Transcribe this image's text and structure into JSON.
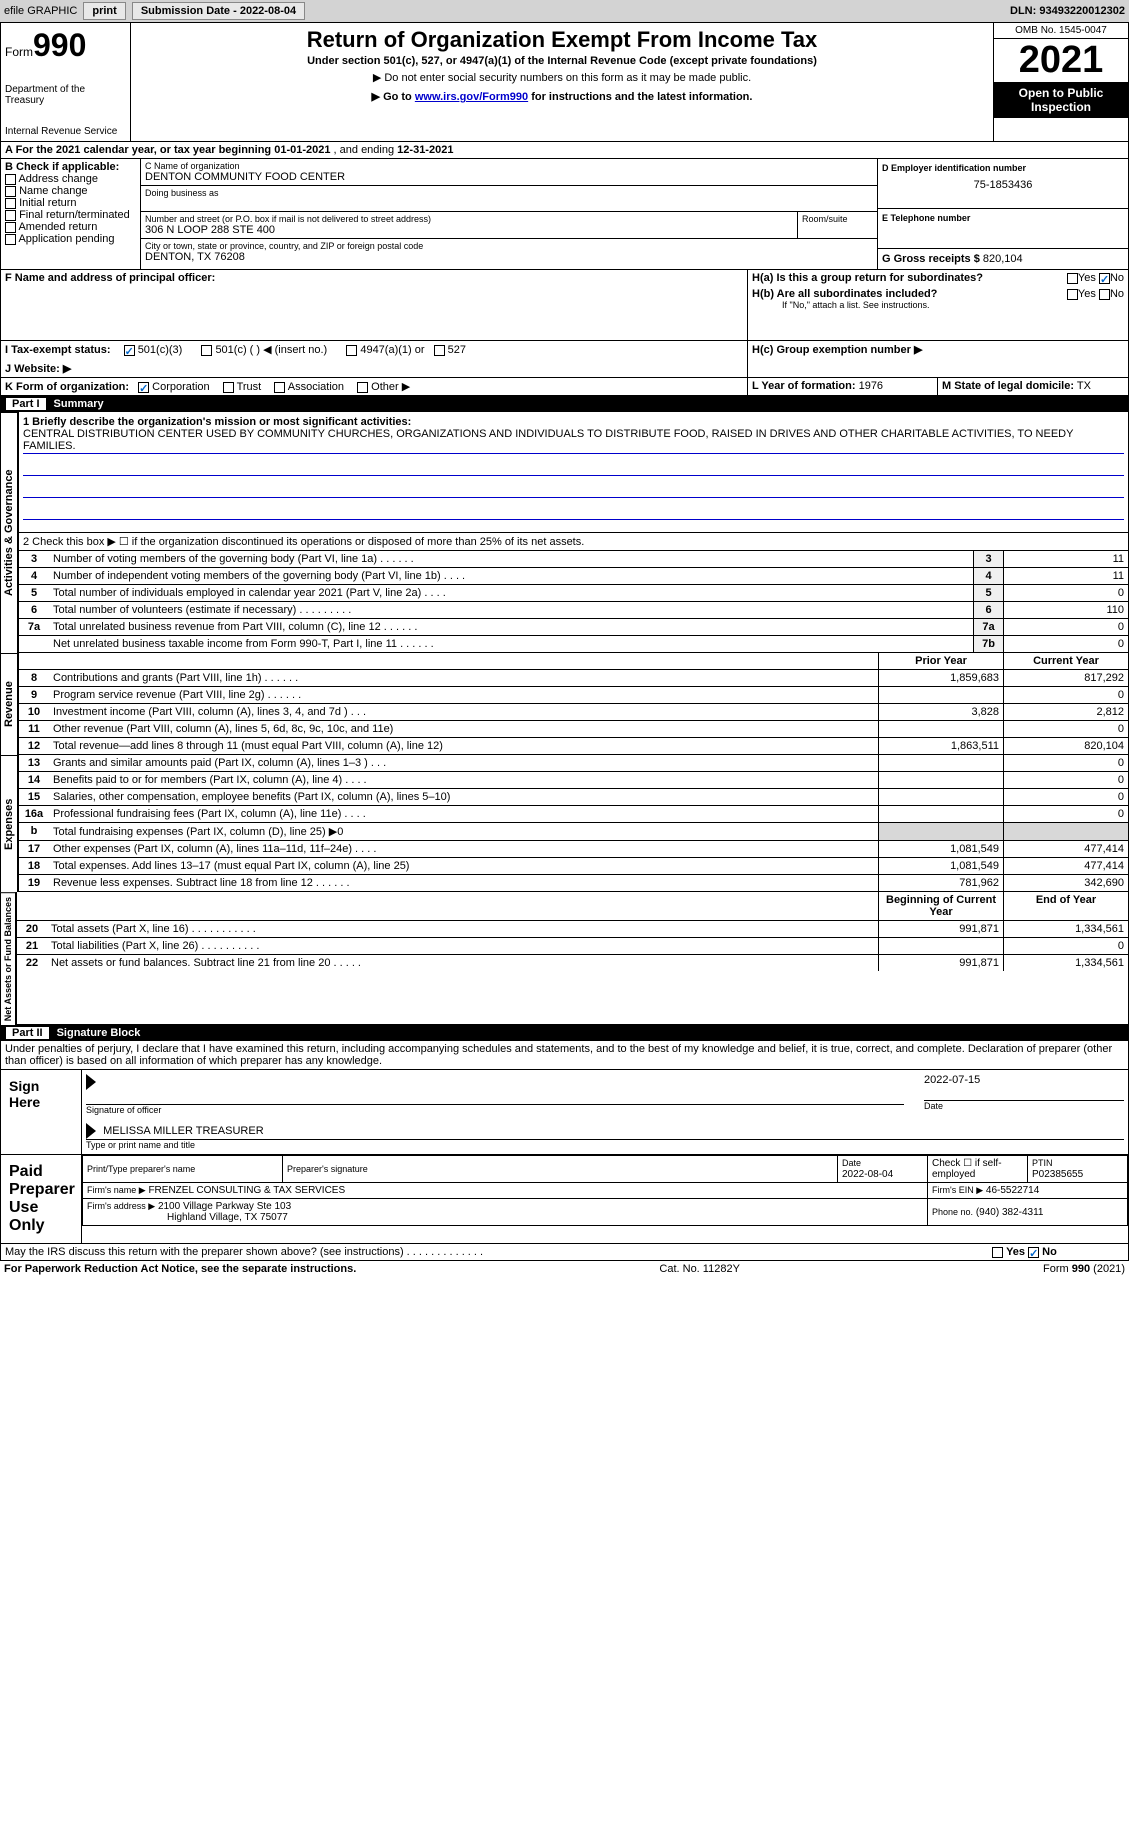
{
  "topbar": {
    "efile": "efile GRAPHIC",
    "print": "print",
    "submission_label": "Submission Date - 2022-08-04",
    "dln_label": "DLN: 93493220012302"
  },
  "header": {
    "form_prefix": "Form",
    "form_num": "990",
    "dept": "Department of the Treasury",
    "irs": "Internal Revenue Service",
    "title": "Return of Organization Exempt From Income Tax",
    "subtitle": "Under section 501(c), 527, or 4947(a)(1) of the Internal Revenue Code (except private foundations)",
    "note1": "▶ Do not enter social security numbers on this form as it may be made public.",
    "note2_pre": "▶ Go to ",
    "note2_link": "www.irs.gov/Form990",
    "note2_post": " for instructions and the latest information.",
    "omb": "OMB No. 1545-0047",
    "year": "2021",
    "inspect": "Open to Public Inspection"
  },
  "lineA": {
    "text_pre": "A For the 2021 calendar year, or tax year beginning ",
    "begin": "01-01-2021",
    "mid": " , and ending ",
    "end": "12-31-2021"
  },
  "sectionB": {
    "label": "B Check if applicable:",
    "items": [
      "Address change",
      "Name change",
      "Initial return",
      "Final return/terminated",
      "Amended return",
      "Application pending"
    ]
  },
  "sectionC": {
    "name_label": "C Name of organization",
    "name": "DENTON COMMUNITY FOOD CENTER",
    "dba_label": "Doing business as",
    "addr_label": "Number and street (or P.O. box if mail is not delivered to street address)",
    "room_label": "Room/suite",
    "addr": "306 N LOOP 288 STE 400",
    "city_label": "City or town, state or province, country, and ZIP or foreign postal code",
    "city": "DENTON, TX  76208"
  },
  "sectionD": {
    "label": "D Employer identification number",
    "value": "75-1853436"
  },
  "sectionE": {
    "label": "E Telephone number"
  },
  "sectionG": {
    "label": "G Gross receipts $",
    "value": "820,104"
  },
  "sectionF": {
    "label": "F Name and address of principal officer:"
  },
  "sectionH": {
    "a_label": "H(a) Is this a group return for subordinates?",
    "b_label": "H(b) Are all subordinates included?",
    "b_note": "If \"No,\" attach a list. See instructions.",
    "c_label": "H(c) Group exemption number ▶",
    "yes": "Yes",
    "no": "No"
  },
  "sectionI": {
    "label": "I   Tax-exempt status:",
    "opt1": "501(c)(3)",
    "opt2": "501(c) (  ) ◀ (insert no.)",
    "opt3": "4947(a)(1) or",
    "opt4": "527"
  },
  "sectionJ": {
    "label": "J   Website: ▶"
  },
  "sectionK": {
    "label": "K Form of organization:",
    "opts": [
      "Corporation",
      "Trust",
      "Association",
      "Other ▶"
    ]
  },
  "sectionL": {
    "label": "L Year of formation:",
    "value": "1976"
  },
  "sectionM": {
    "label": "M State of legal domicile:",
    "value": "TX"
  },
  "part1": {
    "bar": "Part I",
    "title": "Summary",
    "vlabel1": "Activities & Governance",
    "vlabel2": "Revenue",
    "vlabel3": "Expenses",
    "vlabel4": "Net Assets or Fund Balances",
    "l1_label": "1  Briefly describe the organization's mission or most significant activities:",
    "l1_text": "CENTRAL DISTRIBUTION CENTER USED BY COMMUNITY CHURCHES, ORGANIZATIONS AND INDIVIDUALS TO DISTRIBUTE FOOD, RAISED IN DRIVES AND OTHER CHARITABLE ACTIVITIES, TO NEEDY FAMILIES.",
    "l2": "2   Check this box ▶ ☐  if the organization discontinued its operations or disposed of more than 25% of its net assets.",
    "rows": [
      {
        "n": "3",
        "d": "Number of voting members of the governing body (Part VI, line 1a)  .    .    .    .    .    .",
        "b": "3",
        "v": "11"
      },
      {
        "n": "4",
        "d": "Number of independent voting members of the governing body (Part VI, line 1b)  .    .    .    .",
        "b": "4",
        "v": "11"
      },
      {
        "n": "5",
        "d": "Total number of individuals employed in calendar year 2021 (Part V, line 2a)  .    .    .    .",
        "b": "5",
        "v": "0"
      },
      {
        "n": "6",
        "d": "Total number of volunteers (estimate if necessary)    .    .    .    .    .    .    .    .    .",
        "b": "6",
        "v": "110"
      },
      {
        "n": "7a",
        "d": "Total unrelated business revenue from Part VIII, column (C), line 12   .    .    .    .    .    .",
        "b": "7a",
        "v": "0"
      },
      {
        "n": "",
        "d": "Net unrelated business taxable income from Form 990-T, Part I, line 11   .    .    .    .    .    .",
        "b": "7b",
        "v": "0"
      }
    ],
    "colhdr_prior": "Prior Year",
    "colhdr_current": "Current Year",
    "rev_rows": [
      {
        "n": "8",
        "d": "Contributions and grants (Part VIII, line 1h)   .    .    .    .    .    .",
        "p": "1,859,683",
        "c": "817,292"
      },
      {
        "n": "9",
        "d": "Program service revenue (Part VIII, line 2g)   .    .    .    .    .    .",
        "p": "",
        "c": "0"
      },
      {
        "n": "10",
        "d": "Investment income (Part VIII, column (A), lines 3, 4, and 7d )   .    .    .",
        "p": "3,828",
        "c": "2,812"
      },
      {
        "n": "11",
        "d": "Other revenue (Part VIII, column (A), lines 5, 6d, 8c, 9c, 10c, and 11e)",
        "p": "",
        "c": "0"
      },
      {
        "n": "12",
        "d": "Total revenue—add lines 8 through 11 (must equal Part VIII, column (A), line 12)",
        "p": "1,863,511",
        "c": "820,104"
      }
    ],
    "exp_rows": [
      {
        "n": "13",
        "d": "Grants and similar amounts paid (Part IX, column (A), lines 1–3 )   .    .    .",
        "p": "",
        "c": "0"
      },
      {
        "n": "14",
        "d": "Benefits paid to or for members (Part IX, column (A), line 4)   .    .    .    .",
        "p": "",
        "c": "0"
      },
      {
        "n": "15",
        "d": "Salaries, other compensation, employee benefits (Part IX, column (A), lines 5–10)",
        "p": "",
        "c": "0"
      },
      {
        "n": "16a",
        "d": "Professional fundraising fees (Part IX, column (A), line 11e)   .    .    .    .",
        "p": "",
        "c": "0"
      },
      {
        "n": "b",
        "d": "Total fundraising expenses (Part IX, column (D), line 25) ▶0",
        "p": "shade",
        "c": "shade"
      },
      {
        "n": "17",
        "d": "Other expenses (Part IX, column (A), lines 11a–11d, 11f–24e)   .    .    .    .",
        "p": "1,081,549",
        "c": "477,414"
      },
      {
        "n": "18",
        "d": "Total expenses. Add lines 13–17 (must equal Part IX, column (A), line 25)",
        "p": "1,081,549",
        "c": "477,414"
      },
      {
        "n": "19",
        "d": "Revenue less expenses. Subtract line 18 from line 12  .    .    .    .    .    .",
        "p": "781,962",
        "c": "342,690"
      }
    ],
    "colhdr_begin": "Beginning of Current Year",
    "colhdr_end": "End of Year",
    "net_rows": [
      {
        "n": "20",
        "d": "Total assets (Part X, line 16)  .    .    .    .    .    .    .    .    .    .    .",
        "p": "991,871",
        "c": "1,334,561"
      },
      {
        "n": "21",
        "d": "Total liabilities (Part X, line 26)  .    .    .    .    .    .    .    .    .    .",
        "p": "",
        "c": "0"
      },
      {
        "n": "22",
        "d": "Net assets or fund balances. Subtract line 21 from line 20   .    .    .    .    .",
        "p": "991,871",
        "c": "1,334,561"
      }
    ]
  },
  "part2": {
    "bar": "Part II",
    "title": "Signature Block",
    "decl": "Under penalties of perjury, I declare that I have examined this return, including accompanying schedules and statements, and to the best of my knowledge and belief, it is true, correct, and complete. Declaration of preparer (other than officer) is based on all information of which preparer has any knowledge.",
    "sign_here": "Sign Here",
    "sig_officer": "Signature of officer",
    "sig_date": "2022-07-15",
    "date_label": "Date",
    "officer_name": "MELISSA MILLER  TREASURER",
    "type_name": "Type or print name and title",
    "paid_prep": "Paid Preparer Use Only",
    "prep_name_label": "Print/Type preparer's name",
    "prep_sig_label": "Preparer's signature",
    "prep_date_label": "Date",
    "prep_date": "2022-08-04",
    "check_if": "Check ☐ if self-employed",
    "ptin_label": "PTIN",
    "ptin": "P02385655",
    "firm_name_label": "Firm's name    ▶",
    "firm_name": "FRENZEL CONSULTING & TAX SERVICES",
    "firm_ein_label": "Firm's EIN ▶",
    "firm_ein": "46-5522714",
    "firm_addr_label": "Firm's address ▶",
    "firm_addr1": "2100 Village Parkway Ste 103",
    "firm_addr2": "Highland Village, TX  75077",
    "phone_label": "Phone no.",
    "phone": "(940) 382-4311",
    "discuss": "May the IRS discuss this return with the preparer shown above? (see instructions)   .    .    .    .    .    .    .    .    .    .    .    .    ."
  },
  "footer": {
    "left": "For Paperwork Reduction Act Notice, see the separate instructions.",
    "mid": "Cat. No. 11282Y",
    "right": "Form 990 (2021)"
  }
}
